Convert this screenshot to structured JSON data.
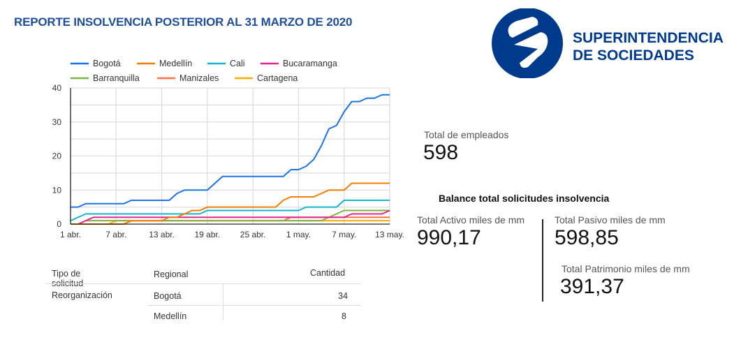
{
  "header": {
    "title": "REPORTE INSOLVENCIA POSTERIOR AL 31 MARZO DE 2020"
  },
  "logo": {
    "line1": "SUPERINTENDENCIA",
    "line2": "DE SOCIEDADES",
    "color": "#003a8c"
  },
  "chart_data": {
    "type": "line",
    "x_tick_labels": [
      "1 abr.",
      "7 abr.",
      "13 abr.",
      "19 abr.",
      "25 abr.",
      "1 may.",
      "7 may.",
      "13 may."
    ],
    "y_ticks": [
      0,
      10,
      20,
      30,
      40
    ],
    "ylim": [
      0,
      40
    ],
    "x_range": [
      "1 abr.",
      "13 may."
    ],
    "grid": true,
    "legend_position": "top",
    "series": [
      {
        "name": "Bogotá",
        "color": "#1a73e8",
        "values": [
          5,
          5,
          6,
          6,
          6,
          6,
          6,
          6,
          7,
          7,
          7,
          7,
          7,
          7,
          9,
          10,
          10,
          10,
          10,
          12,
          14,
          14,
          14,
          14,
          14,
          14,
          14,
          14,
          14,
          16,
          16,
          17,
          19,
          23,
          28,
          29,
          33,
          36,
          36,
          37,
          37,
          38,
          38
        ]
      },
      {
        "name": "Medellín",
        "color": "#f57c00",
        "values": [
          0,
          0,
          0,
          0,
          0,
          0,
          0,
          0,
          1,
          1,
          1,
          1,
          1,
          2,
          2,
          3,
          4,
          4,
          5,
          5,
          5,
          5,
          5,
          5,
          5,
          5,
          5,
          5,
          7,
          8,
          8,
          8,
          8,
          9,
          10,
          10,
          10,
          12,
          12,
          12,
          12,
          12,
          12
        ]
      },
      {
        "name": "Cali",
        "color": "#12b5cb",
        "values": [
          1,
          2,
          3,
          3,
          3,
          3,
          3,
          3,
          3,
          3,
          3,
          3,
          3,
          3,
          3,
          3,
          3,
          3,
          4,
          4,
          4,
          4,
          4,
          4,
          4,
          4,
          4,
          4,
          4,
          4,
          4,
          5,
          5,
          5,
          5,
          5,
          7,
          7,
          7,
          7,
          7,
          7,
          7
        ]
      },
      {
        "name": "Bucaramanga",
        "color": "#e52592",
        "values": [
          0,
          0,
          1,
          2,
          2,
          2,
          2,
          2,
          2,
          2,
          2,
          2,
          2,
          2,
          2,
          2,
          2,
          2,
          2,
          2,
          2,
          2,
          2,
          2,
          2,
          2,
          2,
          2,
          2,
          2,
          2,
          2,
          2,
          2,
          2,
          2,
          2,
          3,
          3,
          3,
          3,
          3,
          4
        ]
      },
      {
        "name": "Barranquilla",
        "color": "#7cb342",
        "values": [
          0,
          0,
          1,
          1,
          1,
          1,
          1,
          1,
          1,
          1,
          1,
          1,
          1,
          1,
          1,
          1,
          1,
          1,
          1,
          1,
          1,
          1,
          1,
          1,
          1,
          1,
          1,
          1,
          1,
          1,
          1,
          1,
          1,
          1,
          2,
          3,
          4,
          4,
          4,
          4,
          4,
          4,
          4
        ]
      },
      {
        "name": "Manizales",
        "color": "#ff7043",
        "values": [
          0,
          0,
          0,
          0,
          0,
          0,
          0,
          0,
          1,
          1,
          1,
          1,
          1,
          1,
          1,
          1,
          1,
          1,
          1,
          1,
          1,
          1,
          1,
          1,
          1,
          1,
          1,
          1,
          1,
          2,
          2,
          2,
          2,
          2,
          2,
          2,
          2,
          2,
          2,
          2,
          2,
          2,
          2
        ]
      },
      {
        "name": "Cartagena",
        "color": "#f9ab00",
        "values": [
          0,
          0,
          0,
          0,
          0,
          0,
          1,
          1,
          1,
          1,
          1,
          1,
          1,
          1,
          1,
          1,
          1,
          1,
          1,
          1,
          1,
          1,
          1,
          1,
          1,
          1,
          1,
          1,
          1,
          1,
          1,
          1,
          1,
          1,
          1,
          1,
          1,
          1,
          1,
          1,
          1,
          1,
          1
        ]
      }
    ]
  },
  "kpis": {
    "employees": {
      "label": "Total de empleados",
      "value": "598"
    },
    "balance_title": "Balance total solicitudes insolvencia",
    "activo": {
      "label": "Total Activo miles de mm",
      "value": "990,17"
    },
    "pasivo": {
      "label": "Total Pasivo miles de mm",
      "value": "598,85"
    },
    "patrimonio": {
      "label": "Total Patrimonio miles de mm",
      "value": "391,37"
    }
  },
  "table": {
    "headers": [
      "Tipo de solicitud",
      "Regional",
      "Cantidad"
    ],
    "group": "Reorganización",
    "rows": [
      {
        "regional": "Bogotá",
        "cantidad": "34"
      },
      {
        "regional": "Medellín",
        "cantidad": "8"
      }
    ]
  }
}
